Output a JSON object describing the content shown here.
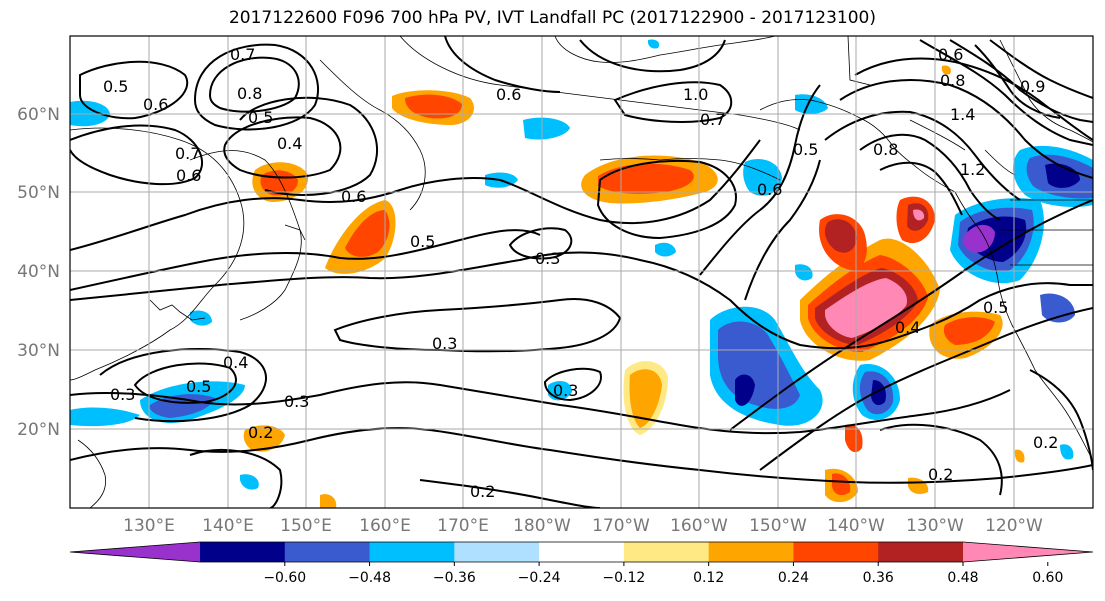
{
  "title": "2017122600 F096 700 hPa PV, IVT Landfall PC (2017122900 - 2017123100)",
  "latitude_labels": [
    "60°N",
    "50°N",
    "40°N",
    "30°N",
    "20°N"
  ],
  "longitude_labels": [
    "130°E",
    "140°E",
    "150°E",
    "160°E",
    "170°E",
    "180°W",
    "170°W",
    "160°W",
    "150°W",
    "140°W",
    "130°W",
    "120°W"
  ],
  "colorbar": {
    "colors": [
      "#9932cc",
      "#00008b",
      "#3a5bd0",
      "#00bfff",
      "#b0e0ff",
      "#ffffff",
      "#ffe985",
      "#ffa500",
      "#ff4500",
      "#b22222",
      "#ff88b4"
    ],
    "tick_labels": [
      "−0.60",
      "−0.48",
      "−0.36",
      "−0.24",
      "−0.12",
      "0.12",
      "0.24",
      "0.36",
      "0.48",
      "0.60"
    ]
  },
  "contour_labels": [
    "0.7",
    "0.5",
    "0.8",
    "0.6",
    "0.5",
    "0.4",
    "0.7",
    "0.6",
    "0.6",
    "0.5",
    "0.3",
    "0.3",
    "0.3",
    "0.3",
    "0.4",
    "0.5",
    "0.3",
    "0.2",
    "0.2",
    "0.2",
    "0.2",
    "0.4",
    "0.5",
    "0.6",
    "0.6",
    "0.8",
    "1.2",
    "1.4",
    "0.6",
    "0.7",
    "0.9",
    "1.0",
    "0.8",
    "0.5"
  ]
}
